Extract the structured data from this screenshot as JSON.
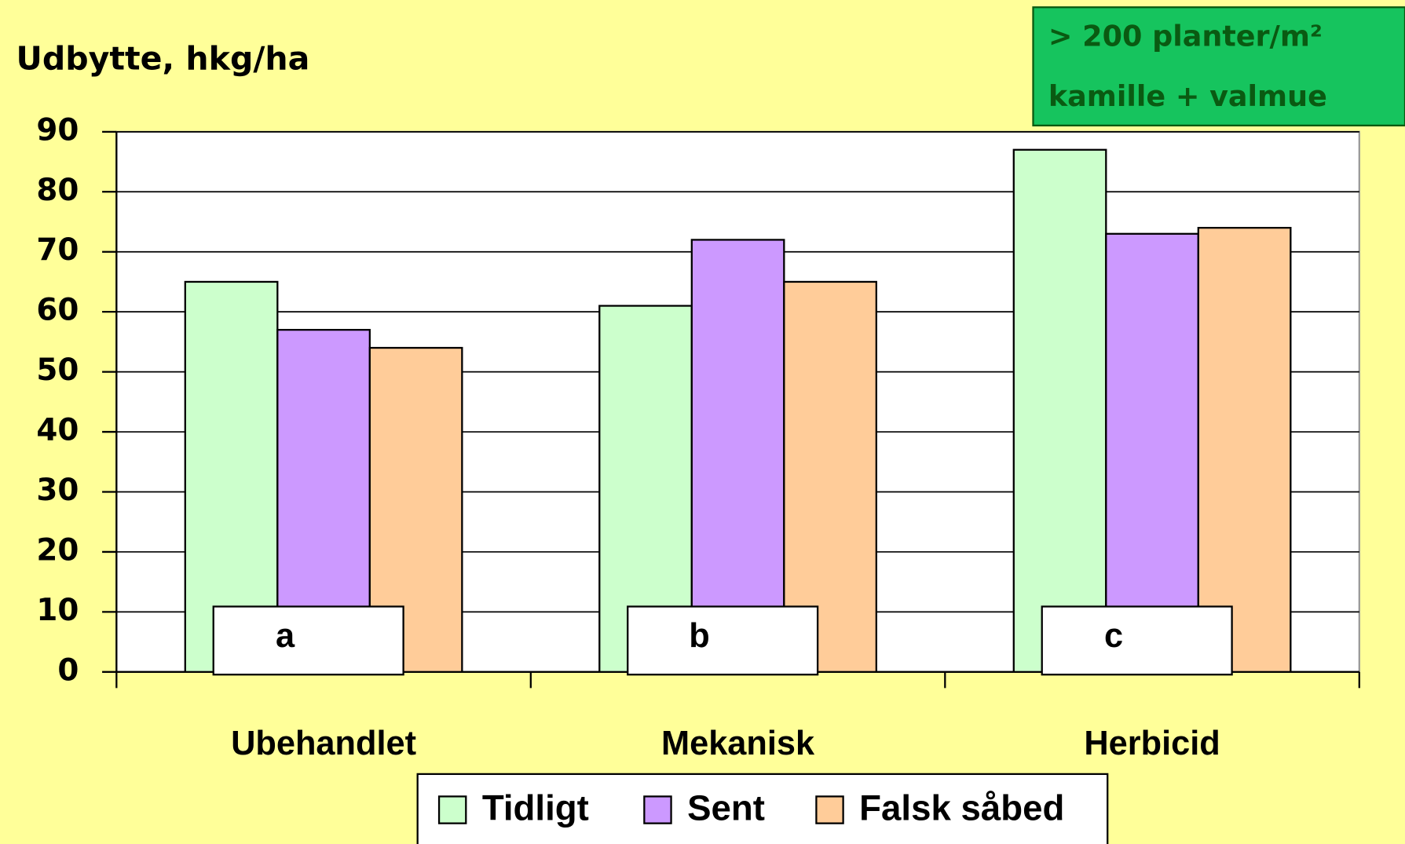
{
  "chart_data": {
    "type": "bar",
    "y_label": "Udbytte, hkg/ha",
    "annotations": [
      "> 200 planter/m²",
      "kamille + valmue"
    ],
    "group_labels": [
      "a",
      "b",
      "c"
    ],
    "categories": [
      "Ubehandlet",
      "Mekanisk",
      "Herbicid"
    ],
    "series": [
      {
        "name": "Tidligt",
        "color": "#ccffcc",
        "values": [
          65,
          61,
          87
        ]
      },
      {
        "name": "Sent",
        "color": "#cc99ff",
        "values": [
          57,
          72,
          73
        ]
      },
      {
        "name": "Falsk såbed",
        "color": "#ffcc99",
        "values": [
          54,
          65,
          74
        ]
      }
    ],
    "ylim": [
      0,
      90
    ],
    "yticks": [
      0,
      10,
      20,
      30,
      40,
      50,
      60,
      70,
      80,
      90
    ],
    "grid": true
  }
}
